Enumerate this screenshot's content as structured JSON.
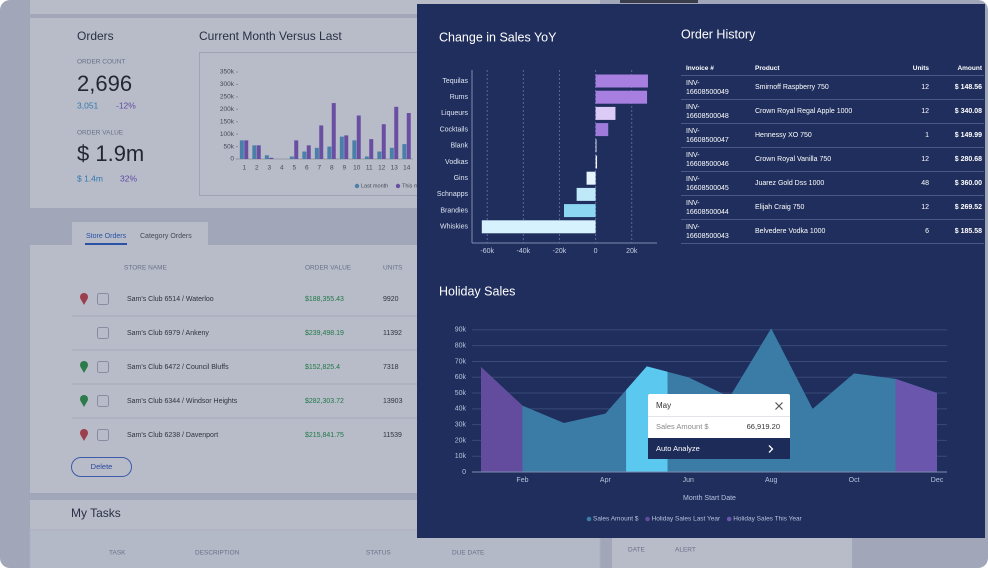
{
  "dashboard": {
    "orders": {
      "title": "Orders",
      "count_label": "ORDER COUNT",
      "count": "2,696",
      "count_previous": "3,051",
      "count_change": "-12%",
      "value_label": "ORDER VALUE",
      "value": "$ 1.9m",
      "value_previous": "$ 1.4m",
      "value_change": "32%"
    },
    "tabs": [
      "Store Orders",
      "Category Orders"
    ],
    "store_table": {
      "headers": [
        "STORE NAME",
        "ORDER VALUE",
        "UNITS"
      ],
      "rows": [
        {
          "pin_color": "#d64545",
          "name": "Sam's Club 6514 / Waterloo",
          "order_value": "$188,355.43",
          "units": 9920
        },
        {
          "name": "Sam's Club 6979 / Ankeny",
          "order_value": "$239,498.19",
          "units": 11392
        },
        {
          "pin_color": "#2f9e44",
          "name": "Sam's Club 6472 / Council Bluffs",
          "order_value": "$152,825.4",
          "units": 7318
        },
        {
          "pin_color": "#2f9e44",
          "name": "Sam's Club 6344 / Windsor Heights",
          "order_value": "$282,303.72",
          "units": 13903
        },
        {
          "pin_color": "#d64545",
          "name": "Sam's Club 6238 / Davenport",
          "order_value": "$215,841.75",
          "units": 11539
        }
      ]
    },
    "delete_button": "Delete",
    "tasks": {
      "title": "My Tasks",
      "headers": [
        "TASK",
        "DESCRIPTION",
        "STATUS",
        "DUE DATE"
      ]
    },
    "alerts": {
      "headers": [
        "DATE",
        "ALERT"
      ]
    }
  },
  "chart_data": [
    {
      "type": "bar",
      "title": "Current Month Versus Last",
      "categories": [
        "1",
        "2",
        "3",
        "4",
        "5",
        "6",
        "7",
        "8",
        "9",
        "10",
        "11",
        "12",
        "13",
        "14"
      ],
      "series": [
        {
          "name": "Last month",
          "color": "#5ba4cf",
          "values": [
            75000,
            55000,
            15000,
            0,
            10000,
            30000,
            45000,
            50000,
            90000,
            75000,
            10000,
            30000,
            45000,
            60000
          ]
        },
        {
          "name": "This month",
          "color": "#8a5cc5",
          "values": [
            75000,
            55000,
            5000,
            0,
            75000,
            55000,
            135000,
            225000,
            95000,
            175000,
            80000,
            140000,
            210000,
            185000
          ]
        }
      ],
      "ylim": [
        0,
        350000
      ],
      "yticks": [
        0,
        {
          "value": 50000,
          "label": "50k"
        },
        {
          "value": 100000,
          "label": "100k"
        },
        {
          "value": 150000,
          "label": "150k"
        },
        {
          "value": 200000,
          "label": "200k"
        },
        {
          "value": 250000,
          "label": "250k"
        },
        {
          "value": 300000,
          "label": "300k"
        },
        {
          "value": 350000,
          "label": "350k"
        }
      ]
    },
    {
      "type": "bar",
      "orientation": "horizontal",
      "title": "Change in Sales YoY",
      "categories": [
        "Tequilas",
        "Rums",
        "Liqueurs",
        "Cocktails",
        "Blank",
        "Vodkas",
        "Gins",
        "Schnapps",
        "Brandies",
        "Whiskies"
      ],
      "values": [
        29000,
        28500,
        11000,
        7000,
        500,
        800,
        -5000,
        -10500,
        -17500,
        -63000
      ],
      "colors": [
        "#a77fe0",
        "#a77fe0",
        "#dccbf6",
        "#9f7bdc",
        "#e6e6f0",
        "#f2f2f7",
        "#e6f6fc",
        "#bfe8f8",
        "#8dd6f2",
        "#d6f2fc"
      ],
      "xlim": [
        -64000,
        34000
      ],
      "xticks": [
        {
          "value": -60000,
          "label": "-60k"
        },
        {
          "value": -40000,
          "label": "-40k"
        },
        {
          "value": -20000,
          "label": "-20k"
        },
        0,
        {
          "value": 20000,
          "label": "20k"
        }
      ],
      "grid": true
    },
    {
      "type": "area",
      "title": "Holiday Sales",
      "x_label": "Month Start Date",
      "categories": [
        null,
        "Feb",
        null,
        "Apr",
        null,
        "Jun",
        null,
        "Aug",
        null,
        "Oct",
        null,
        "Dec"
      ],
      "series": [
        {
          "name": "Sales Amount $",
          "color": "#3a7ca6",
          "values": [
            66500,
            42000,
            31000,
            37000,
            66919.2,
            60000,
            47500,
            91000,
            40000,
            62500,
            59000,
            50000
          ]
        },
        {
          "name": "Holiday Sales Last Year",
          "color": "#634c9e",
          "values": [
            66500,
            42000,
            null,
            null,
            null,
            null,
            null,
            null,
            null,
            null,
            null,
            null
          ]
        },
        {
          "name": "Holiday Sales This Year",
          "color": "#6a56ad",
          "values": [
            null,
            null,
            null,
            null,
            null,
            null,
            null,
            null,
            null,
            null,
            59000,
            50000
          ]
        }
      ],
      "highlight_color": "#5bc8ef",
      "ylim": [
        0,
        95000
      ],
      "yticks": [
        0,
        {
          "value": 10000,
          "label": "10k"
        },
        {
          "value": 20000,
          "label": "20k"
        },
        {
          "value": 30000,
          "label": "30k"
        },
        {
          "value": 40000,
          "label": "40k"
        },
        {
          "value": 50000,
          "label": "50k"
        },
        {
          "value": 60000,
          "label": "60k"
        },
        {
          "value": 70000,
          "label": "70k"
        },
        {
          "value": 80000,
          "label": "80k"
        },
        {
          "value": 90000,
          "label": "90k"
        }
      ],
      "grid": true
    }
  ],
  "order_history": {
    "title": "Order History",
    "headers": [
      "Invoice #",
      "Product",
      "Units",
      "Amount"
    ],
    "rows": [
      [
        "INV-16608500049",
        "Smirnoff Raspberry 750",
        12,
        "$ 148.56"
      ],
      [
        "INV-16608500048",
        "Crown Royal Regal Apple 1000",
        12,
        "$ 340.08"
      ],
      [
        "INV-16608500047",
        "Hennessy XO 750",
        1,
        "$ 149.99"
      ],
      [
        "INV-16608500046",
        "Crown Royal Vanilla 750",
        12,
        "$ 280.68"
      ],
      [
        "INV-16608500045",
        "Juarez Gold Dss 1000",
        48,
        "$ 360.00"
      ],
      [
        "INV-16608500044",
        "Elijah Craig 750",
        12,
        "$ 269.52"
      ],
      [
        "INV-16608500043",
        "Belvedere Vodka 1000",
        6,
        "$ 185.58"
      ]
    ]
  },
  "tooltip": {
    "title": "May",
    "label": "Sales Amount $",
    "value": 66919.2,
    "value_label": "66,919.20",
    "action": "Auto Analyze"
  }
}
